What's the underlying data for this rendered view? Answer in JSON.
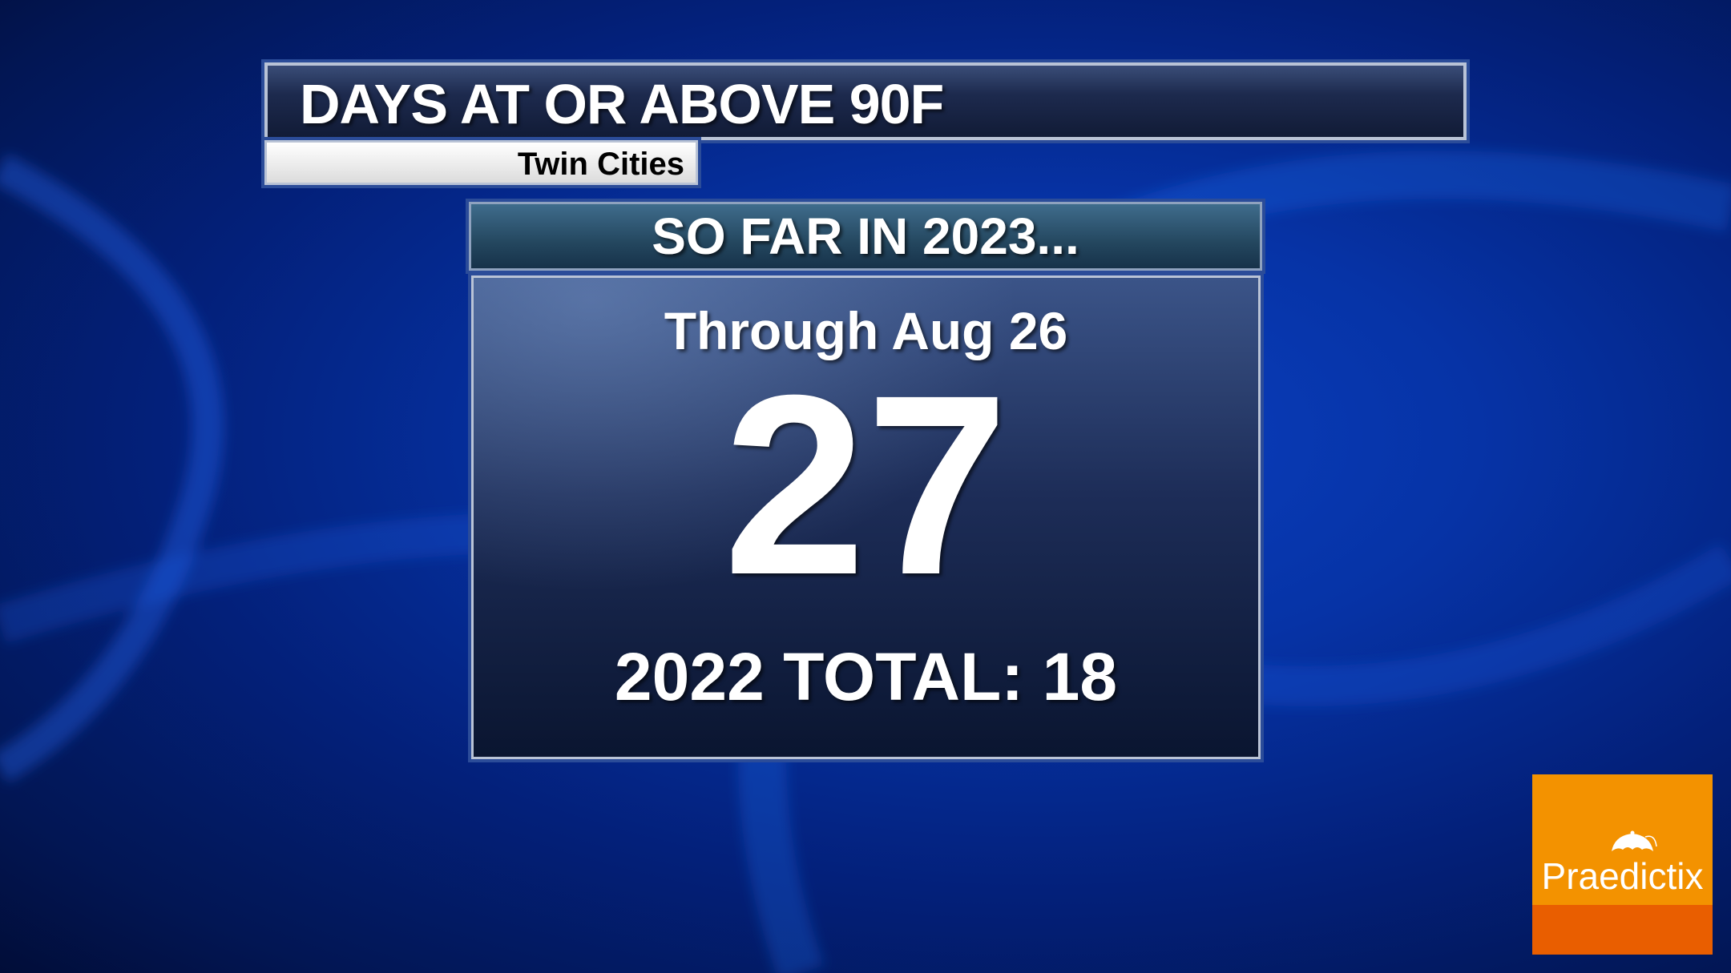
{
  "title": "DAYS AT OR ABOVE 90F",
  "location": "Twin Cities",
  "section_header": "SO FAR IN 2023...",
  "through_label": "Through Aug 26",
  "count": "27",
  "previous_total": "2022 TOTAL: 18",
  "logo": {
    "text": "Praedictix",
    "icon": "umbrella-icon",
    "colors": {
      "top": "#f39200",
      "bottom": "#e95e00"
    }
  },
  "colors": {
    "background": "#0633a6"
  }
}
